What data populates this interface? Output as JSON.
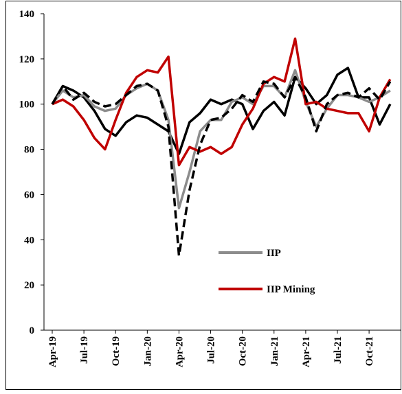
{
  "chart_data": {
    "type": "line",
    "categories": [
      "Apr-19",
      null,
      null,
      "Jul-19",
      null,
      null,
      "Oct-19",
      null,
      null,
      "Jan-20",
      null,
      null,
      "Apr-20",
      null,
      null,
      "Jul-20",
      null,
      null,
      "Oct-20",
      null,
      null,
      "Jan-21",
      null,
      null,
      "Apr-21",
      null,
      null,
      "Jul-21",
      null,
      null,
      "Oct-21",
      null,
      null
    ],
    "series": [
      {
        "color": "#000000",
        "dash": false,
        "values": [
          100,
          108,
          106,
          103,
          97,
          89,
          86,
          92,
          95,
          94,
          91,
          88,
          78,
          92,
          96,
          102,
          100,
          102,
          100,
          89,
          97,
          101,
          95,
          112,
          107,
          100,
          104,
          113,
          116,
          103,
          103,
          91,
          100
        ]
      },
      {
        "name": "IIP",
        "color": "#8c8c8c",
        "dash": false,
        "values": [
          100,
          106,
          103,
          104,
          99,
          97,
          98,
          104,
          107,
          109,
          106,
          93,
          54,
          70,
          88,
          93,
          93,
          101,
          103,
          100,
          108,
          108,
          103,
          115,
          101,
          90,
          98,
          104,
          104,
          103,
          101,
          103,
          106
        ]
      },
      {
        "name": "IIP Mining",
        "color": "#c00000",
        "dash": false,
        "values": [
          100,
          102,
          99,
          93,
          85,
          80,
          93,
          105,
          112,
          115,
          114,
          121,
          73,
          81,
          79,
          81,
          78,
          81,
          91,
          98,
          109,
          112,
          110,
          129,
          100,
          101,
          98,
          97,
          96,
          96,
          88,
          103,
          111
        ]
      },
      {
        "color": "#000000",
        "dash": true,
        "values": [
          100,
          108,
          102,
          105,
          101,
          99,
          100,
          104,
          108,
          109,
          106,
          90,
          33,
          62,
          82,
          93,
          94,
          98,
          104,
          101,
          110,
          109,
          103,
          112,
          103,
          88,
          100,
          104,
          105,
          103,
          107,
          102,
          110
        ]
      }
    ],
    "ylim": [
      0,
      140
    ],
    "yticks": [
      0,
      20,
      40,
      60,
      80,
      100,
      120,
      140
    ]
  }
}
